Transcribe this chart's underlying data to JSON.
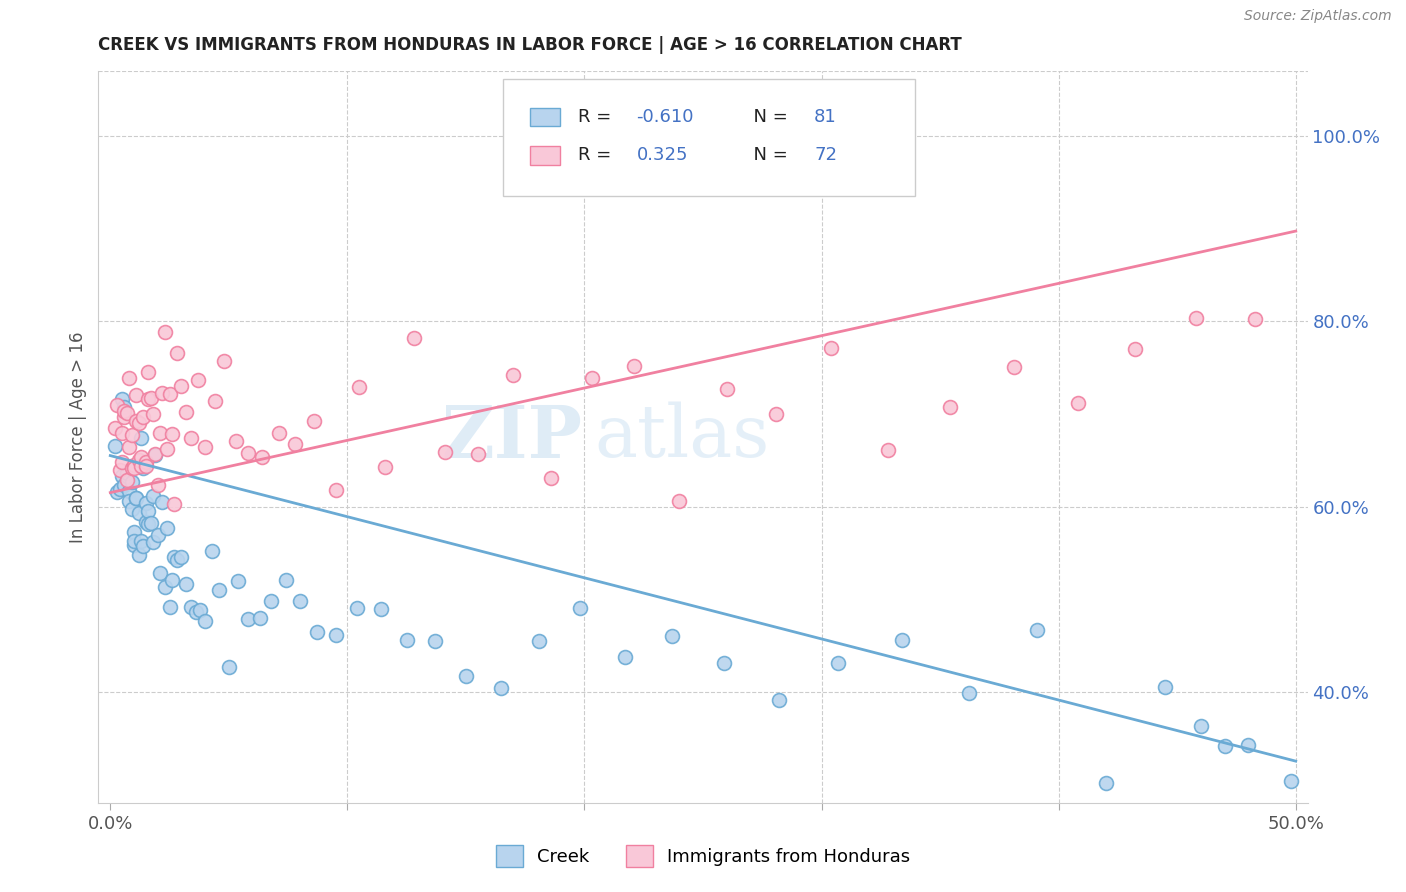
{
  "title": "CREEK VS IMMIGRANTS FROM HONDURAS IN LABOR FORCE | AGE > 16 CORRELATION CHART",
  "source": "Source: ZipAtlas.com",
  "ylabel": "In Labor Force | Age > 16",
  "xlim": [
    -0.005,
    0.505
  ],
  "ylim": [
    0.28,
    1.07
  ],
  "creek_color": "#b8d4ee",
  "creek_edge_color": "#6aaad4",
  "honduras_color": "#f9c8d8",
  "honduras_edge_color": "#f080a0",
  "creek_line_color": "#6aaad4",
  "honduras_line_color": "#f080a0",
  "creek_intercept": 0.655,
  "creek_slope": -0.66,
  "honduras_intercept": 0.615,
  "honduras_slope": 0.565,
  "watermark_zip": "ZIP",
  "watermark_atlas": "atlas",
  "grid_color": "#cccccc",
  "right_tick_color": "#4472c4",
  "title_color": "#222222",
  "source_color": "#888888",
  "ylabel_color": "#555555",
  "xtick_color": "#555555",
  "legend_r1": "R = -0.610   N = 81",
  "legend_r2": "R =  0.325   N = 72",
  "legend_val1": "-0.610",
  "legend_n1": "81",
  "legend_val2": "0.325",
  "legend_n2": "72",
  "blue_text_color": "#4472c4",
  "creek_seed_x": [
    0.002,
    0.003,
    0.004,
    0.005,
    0.005,
    0.006,
    0.006,
    0.007,
    0.007,
    0.008,
    0.008,
    0.009,
    0.009,
    0.01,
    0.01,
    0.01,
    0.011,
    0.011,
    0.012,
    0.012,
    0.013,
    0.013,
    0.014,
    0.014,
    0.015,
    0.015,
    0.016,
    0.016,
    0.017,
    0.018,
    0.018,
    0.019,
    0.02,
    0.021,
    0.022,
    0.023,
    0.024,
    0.025,
    0.026,
    0.027,
    0.028,
    0.03,
    0.032,
    0.034,
    0.036,
    0.038,
    0.04,
    0.043,
    0.046,
    0.05,
    0.054,
    0.058,
    0.063,
    0.068,
    0.074,
    0.08,
    0.087,
    0.095,
    0.104,
    0.114,
    0.125,
    0.137,
    0.15,
    0.165,
    0.181,
    0.198,
    0.217,
    0.237,
    0.259,
    0.282,
    0.307,
    0.334,
    0.362,
    0.391,
    0.42,
    0.445,
    0.46,
    0.47,
    0.48,
    0.49,
    0.498
  ],
  "creek_seed_y": [
    0.65,
    0.62,
    0.6,
    0.67,
    0.64,
    0.63,
    0.66,
    0.61,
    0.65,
    0.6,
    0.62,
    0.64,
    0.59,
    0.63,
    0.61,
    0.58,
    0.64,
    0.6,
    0.62,
    0.59,
    0.63,
    0.57,
    0.64,
    0.6,
    0.62,
    0.58,
    0.63,
    0.57,
    0.6,
    0.62,
    0.58,
    0.6,
    0.57,
    0.56,
    0.58,
    0.55,
    0.57,
    0.55,
    0.56,
    0.54,
    0.52,
    0.54,
    0.52,
    0.5,
    0.53,
    0.51,
    0.49,
    0.52,
    0.5,
    0.48,
    0.51,
    0.49,
    0.5,
    0.48,
    0.49,
    0.47,
    0.49,
    0.47,
    0.48,
    0.46,
    0.47,
    0.46,
    0.45,
    0.44,
    0.43,
    0.45,
    0.44,
    0.43,
    0.42,
    0.41,
    0.42,
    0.41,
    0.4,
    0.42,
    0.38,
    0.38,
    0.36,
    0.35,
    0.34,
    0.33,
    0.31
  ],
  "honduras_seed_x": [
    0.002,
    0.003,
    0.004,
    0.005,
    0.005,
    0.006,
    0.006,
    0.007,
    0.007,
    0.008,
    0.008,
    0.009,
    0.009,
    0.01,
    0.01,
    0.011,
    0.011,
    0.012,
    0.012,
    0.013,
    0.013,
    0.014,
    0.015,
    0.015,
    0.016,
    0.016,
    0.017,
    0.018,
    0.019,
    0.02,
    0.021,
    0.022,
    0.023,
    0.024,
    0.025,
    0.026,
    0.027,
    0.028,
    0.03,
    0.032,
    0.034,
    0.037,
    0.04,
    0.044,
    0.048,
    0.053,
    0.058,
    0.064,
    0.071,
    0.078,
    0.086,
    0.095,
    0.105,
    0.116,
    0.128,
    0.141,
    0.155,
    0.17,
    0.186,
    0.203,
    0.221,
    0.24,
    0.26,
    0.281,
    0.304,
    0.328,
    0.354,
    0.381,
    0.408,
    0.432,
    0.458,
    0.483
  ],
  "honduras_seed_y": [
    0.67,
    0.65,
    0.66,
    0.68,
    0.7,
    0.66,
    0.69,
    0.65,
    0.68,
    0.66,
    0.7,
    0.67,
    0.69,
    0.66,
    0.7,
    0.68,
    0.71,
    0.69,
    0.66,
    0.7,
    0.67,
    0.71,
    0.68,
    0.65,
    0.7,
    0.67,
    0.71,
    0.69,
    0.66,
    0.7,
    0.68,
    0.72,
    0.69,
    0.67,
    0.71,
    0.68,
    0.65,
    0.72,
    0.7,
    0.67,
    0.71,
    0.68,
    0.72,
    0.69,
    0.67,
    0.71,
    0.68,
    0.65,
    0.7,
    0.73,
    0.69,
    0.66,
    0.71,
    0.68,
    0.72,
    0.69,
    0.67,
    0.71,
    0.68,
    0.73,
    0.7,
    0.67,
    0.72,
    0.69,
    0.74,
    0.71,
    0.76,
    0.73,
    0.7,
    0.76,
    0.79,
    0.83
  ]
}
